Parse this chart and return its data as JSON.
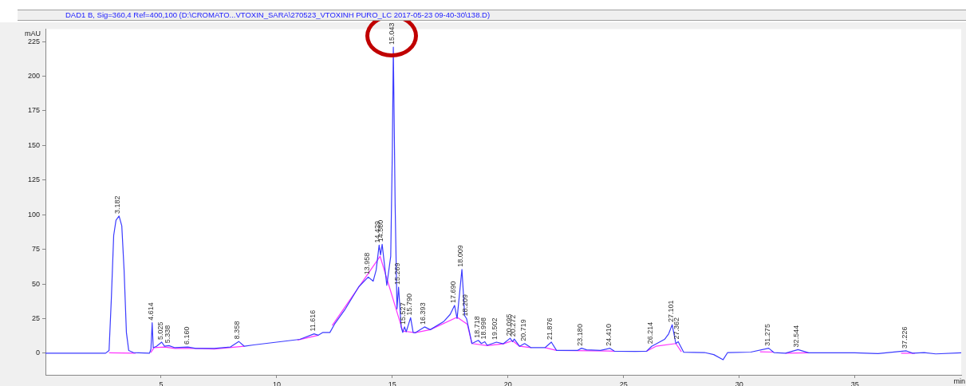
{
  "chart_data": {
    "type": "line",
    "title": "DAD1 B, Sig=360,4 Ref=400,100 (D:\\CROMATO...VTOXIN_SARA\\270523_VTOXINH PURO_LC 2017-05-23 09-40-30\\138.D)",
    "xlabel": "min",
    "ylabel": "mAU",
    "xlim": [
      0,
      39.6
    ],
    "xticks": [
      5,
      10,
      15,
      20,
      25,
      30,
      35
    ],
    "ylim": [
      -15.6,
      234
    ],
    "yticks": [
      0,
      25,
      50,
      75,
      100,
      125,
      150,
      175,
      200,
      225
    ],
    "grid": false,
    "legend": false,
    "marker": "none",
    "line_style": "solid",
    "series": [
      {
        "color": "#3b3bff",
        "x": [
          0,
          2.6,
          2.75,
          2.85,
          2.95,
          3.05,
          3.182,
          3.3,
          3.4,
          3.5,
          3.6,
          3.8,
          4.5,
          4.56,
          4.614,
          4.66,
          4.8,
          5.025,
          5.15,
          5.338,
          5.6,
          6.16,
          6.5,
          7.3,
          8.0,
          8.358,
          8.6,
          9,
          10,
          11,
          11.616,
          11.8,
          12.0,
          12.3,
          12.5,
          12.97,
          13.55,
          13.958,
          14.17,
          14.3,
          14.429,
          14.49,
          14.56,
          14.76,
          14.93,
          15.0,
          15.043,
          15.12,
          15.2,
          15.269,
          15.38,
          15.45,
          15.527,
          15.6,
          15.79,
          15.9,
          15.99,
          16.393,
          16.64,
          17.23,
          17.5,
          17.69,
          17.8,
          18.009,
          18.13,
          18.209,
          18.44,
          18.718,
          18.85,
          18.998,
          19.1,
          19.502,
          19.8,
          20.095,
          20.2,
          20.272,
          20.5,
          20.719,
          21.0,
          21.6,
          21.876,
          22.1,
          23.0,
          23.18,
          23.4,
          24.0,
          24.41,
          24.6,
          25.5,
          26.0,
          26.214,
          26.77,
          26.95,
          27.101,
          27.26,
          27.362,
          27.6,
          28.5,
          28.9,
          29.3,
          29.5,
          30.5,
          31.275,
          31.5,
          32.0,
          32.544,
          33,
          35,
          36,
          37.226,
          37.5,
          38,
          38.5,
          39.6
        ],
        "values": [
          0,
          0,
          2,
          40,
          85,
          96,
          99,
          92,
          60,
          15,
          2,
          0.5,
          0,
          3,
          22,
          4,
          5,
          8,
          5,
          5.5,
          4,
          4.5,
          3.5,
          3.5,
          4.5,
          8.5,
          5,
          6,
          8,
          10,
          14,
          13,
          15,
          15,
          21,
          32,
          48,
          55,
          52,
          60,
          78,
          71,
          78.6,
          49,
          70,
          146,
          221,
          108,
          32,
          47.7,
          19,
          15,
          19,
          15.5,
          25.6,
          15,
          14.8,
          19,
          17,
          23,
          28,
          34.5,
          25,
          60.5,
          27,
          25,
          7,
          9.3,
          7,
          8.3,
          5.7,
          8,
          6.8,
          10.8,
          8.3,
          10.2,
          5,
          7,
          4,
          4,
          8,
          2,
          2,
          3.6,
          2.5,
          2,
          3.6,
          1.5,
          1.3,
          1.5,
          5,
          10,
          14,
          20.6,
          7,
          8.3,
          0.7,
          0.5,
          -1,
          -4.7,
          0.5,
          0.8,
          3.6,
          0.5,
          0,
          2.6,
          0.3,
          0.3,
          -0.3,
          1.7,
          0,
          0.5,
          -0.5,
          0.3
        ]
      },
      {
        "color": "#ff33ff",
        "x": [
          2.75,
          3.9,
          3.95,
          4.55,
          4.7,
          5.15,
          5.6,
          6.5,
          7.3,
          8.6,
          8.7,
          10.9,
          11.8,
          12.0,
          12.4,
          14.47,
          15.45,
          15.99,
          16.64,
          17.8,
          18.24,
          18.44,
          19.1,
          19.8,
          20.2,
          20.5,
          21.0,
          21.3,
          21.6,
          22.1,
          24.6,
          24.7,
          26.0,
          26.4,
          27.26,
          27.5,
          27.6,
          30.9,
          31.5,
          31.7,
          32.0,
          33.0,
          33.1,
          37.0,
          37.6
        ],
        "values": [
          0.3,
          0,
          null,
          0.5,
          4,
          4.5,
          3.5,
          3.5,
          3,
          5,
          null,
          9.5,
          13,
          null,
          20,
          70,
          16,
          14.8,
          17,
          26,
          21,
          7,
          5.5,
          6.8,
          9,
          5,
          4,
          null,
          4,
          2,
          1.5,
          null,
          1.5,
          5,
          7,
          1,
          null,
          1,
          0.8,
          null,
          0,
          0.3,
          null,
          0,
          0
        ]
      }
    ],
    "annotations": [
      {
        "text": "3.182",
        "x": 3.182,
        "y": 99
      },
      {
        "text": "4.614",
        "x": 4.614,
        "y": 22
      },
      {
        "text": "5.025",
        "x": 5.025,
        "y": 8
      },
      {
        "text": "5.338",
        "x": 5.338,
        "y": 5.5
      },
      {
        "text": "6.160",
        "x": 6.16,
        "y": 4.5
      },
      {
        "text": "8.358",
        "x": 8.358,
        "y": 8.5
      },
      {
        "text": "11.616",
        "x": 11.616,
        "y": 14
      },
      {
        "text": "13.958",
        "x": 13.958,
        "y": 55
      },
      {
        "text": "14.429",
        "x": 14.429,
        "y": 78
      },
      {
        "text": "14.560",
        "x": 14.56,
        "y": 78.6
      },
      {
        "text": "15.043",
        "x": 15.043,
        "y": 221
      },
      {
        "text": "15.269",
        "x": 15.269,
        "y": 47.7
      },
      {
        "text": "15.527",
        "x": 15.527,
        "y": 19
      },
      {
        "text": "15.790",
        "x": 15.79,
        "y": 25.6
      },
      {
        "text": "16.393",
        "x": 16.393,
        "y": 19
      },
      {
        "text": "17.690",
        "x": 17.69,
        "y": 34.5
      },
      {
        "text": "18.009",
        "x": 18.009,
        "y": 60.5
      },
      {
        "text": "18.209",
        "x": 18.209,
        "y": 25
      },
      {
        "text": "18.718",
        "x": 18.718,
        "y": 9.3
      },
      {
        "text": "18.998",
        "x": 18.998,
        "y": 8.3
      },
      {
        "text": "19.502",
        "x": 19.502,
        "y": 8
      },
      {
        "text": "20.095",
        "x": 20.095,
        "y": 10.8
      },
      {
        "text": "20.272",
        "x": 20.272,
        "y": 10.2
      },
      {
        "text": "20.719",
        "x": 20.719,
        "y": 7
      },
      {
        "text": "21.876",
        "x": 21.876,
        "y": 8
      },
      {
        "text": "23.180",
        "x": 23.18,
        "y": 3.6
      },
      {
        "text": "24.410",
        "x": 24.41,
        "y": 3.6
      },
      {
        "text": "26.214",
        "x": 26.214,
        "y": 5
      },
      {
        "text": "27.101",
        "x": 27.101,
        "y": 20.6
      },
      {
        "text": "27.362",
        "x": 27.362,
        "y": 8.3
      },
      {
        "text": "31.275",
        "x": 31.275,
        "y": 3.6
      },
      {
        "text": "32.544",
        "x": 32.544,
        "y": 2.6
      },
      {
        "text": "37.226",
        "x": 37.226,
        "y": 1.7
      }
    ]
  }
}
